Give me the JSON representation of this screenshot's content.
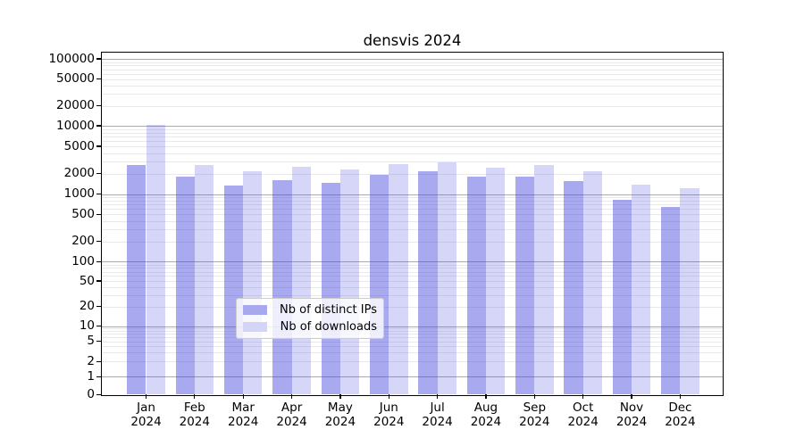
{
  "chart_data": {
    "type": "bar",
    "title": "densvis 2024",
    "categories": [
      "Jan",
      "Feb",
      "Mar",
      "Apr",
      "May",
      "Jun",
      "Jul",
      "Aug",
      "Sep",
      "Oct",
      "Nov",
      "Dec"
    ],
    "x_tick_second_line": "2024",
    "series": [
      {
        "name": "Nb of distinct IPs",
        "color": "rgba(68,68,221,0.46)",
        "legend_color": "#a8a8ef",
        "values": [
          2700,
          1830,
          1320,
          1620,
          1460,
          1900,
          2150,
          1800,
          1780,
          1550,
          830,
          640
        ]
      },
      {
        "name": "Nb of downloads",
        "color": "rgba(68,68,221,0.22)",
        "legend_color": "#d4d4f7",
        "values": [
          10300,
          2640,
          2150,
          2540,
          2300,
          2720,
          2900,
          2470,
          2670,
          2150,
          1380,
          1220
        ]
      }
    ],
    "xlabel": "",
    "ylabel": "",
    "y_scale": "symlog",
    "y_ticks": [
      0,
      1,
      2,
      5,
      10,
      20,
      50,
      100,
      200,
      500,
      1000,
      2000,
      5000,
      10000,
      20000,
      50000,
      100000
    ],
    "y_tick_labels": [
      "0",
      "1",
      "2",
      "5",
      "10",
      "20",
      "50",
      "100",
      "200",
      "500",
      "1000",
      "2000",
      "5000",
      "10000",
      "20000",
      "50000",
      "100000"
    ],
    "ylim": [
      0,
      126000
    ],
    "grid": true,
    "legend_position": "lower center"
  },
  "colors": {
    "major_grid": "#ababab",
    "minor_grid": "#e9e9e9",
    "axis": "#000000",
    "background": "#ffffff"
  }
}
